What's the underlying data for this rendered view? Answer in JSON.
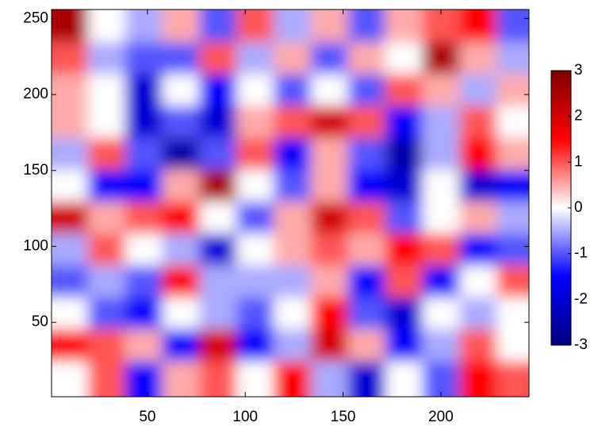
{
  "chart_data": {
    "type": "heatmap",
    "xlim": [
      1,
      245
    ],
    "ylim": [
      1,
      256
    ],
    "xticks": [
      50,
      100,
      150,
      200
    ],
    "yticks": [
      50,
      100,
      150,
      200,
      250
    ],
    "x": [
      10,
      29,
      48,
      67,
      86,
      105,
      124,
      143,
      162,
      181,
      200,
      219,
      238
    ],
    "y": [
      245,
      224,
      203,
      182,
      161,
      140,
      119,
      98,
      77,
      56,
      35,
      14
    ],
    "z": [
      [
        2.5,
        0,
        -0.5,
        0.5,
        -1,
        1,
        -0.5,
        0.5,
        -1,
        0.5,
        1,
        1.5,
        -1
      ],
      [
        1,
        -0.5,
        -1,
        -1,
        1,
        -0.5,
        0.5,
        -1,
        0.5,
        0,
        2.5,
        0.5,
        -0.5
      ],
      [
        0.5,
        0,
        -2,
        0,
        -1.5,
        0,
        -1,
        0,
        -1,
        1,
        0.5,
        -0.5,
        0.5
      ],
      [
        0.5,
        0,
        -2,
        -1,
        -2,
        0.5,
        1,
        2,
        1,
        -1.5,
        -0.5,
        1,
        0
      ],
      [
        -0.5,
        1,
        -1,
        -2.5,
        -1,
        1,
        -1.5,
        0.5,
        -1,
        -2.5,
        -0.5,
        1.5,
        0.5
      ],
      [
        0,
        -1.5,
        -1.5,
        0.5,
        2.5,
        0,
        -1,
        0.5,
        -1.5,
        -2,
        0,
        -2,
        -1.5
      ],
      [
        2,
        0.5,
        1,
        1.5,
        0,
        -1,
        0.5,
        2,
        1,
        -1,
        0,
        0.5,
        -0.5
      ],
      [
        -0.5,
        1,
        0,
        -0.5,
        -2,
        0,
        0.5,
        1,
        0.5,
        1.5,
        1,
        -1.5,
        -1
      ],
      [
        -1,
        -0.5,
        -1,
        1.5,
        -0.5,
        -0.5,
        -0.5,
        0.5,
        -1.5,
        1,
        -1.5,
        0,
        1
      ],
      [
        0,
        -1,
        -1.5,
        0,
        -0.5,
        -1,
        0,
        1.5,
        -1,
        -2,
        0,
        -0.5,
        0
      ],
      [
        1.5,
        1,
        0.5,
        -1.5,
        2,
        -1.5,
        -0.5,
        2,
        0.5,
        -1.5,
        -0.5,
        1,
        0
      ],
      [
        0,
        1,
        -1.5,
        0.5,
        1,
        0,
        1.5,
        -0.5,
        -2,
        0,
        -1,
        1.5,
        1
      ]
    ],
    "clim": [
      -3,
      3
    ],
    "cticks": [
      -3,
      -2,
      -1,
      0,
      1,
      2,
      3
    ],
    "colormap": [
      "#00007f",
      "#0000ff",
      "#ffffff",
      "#ff0000",
      "#7f0000"
    ]
  }
}
